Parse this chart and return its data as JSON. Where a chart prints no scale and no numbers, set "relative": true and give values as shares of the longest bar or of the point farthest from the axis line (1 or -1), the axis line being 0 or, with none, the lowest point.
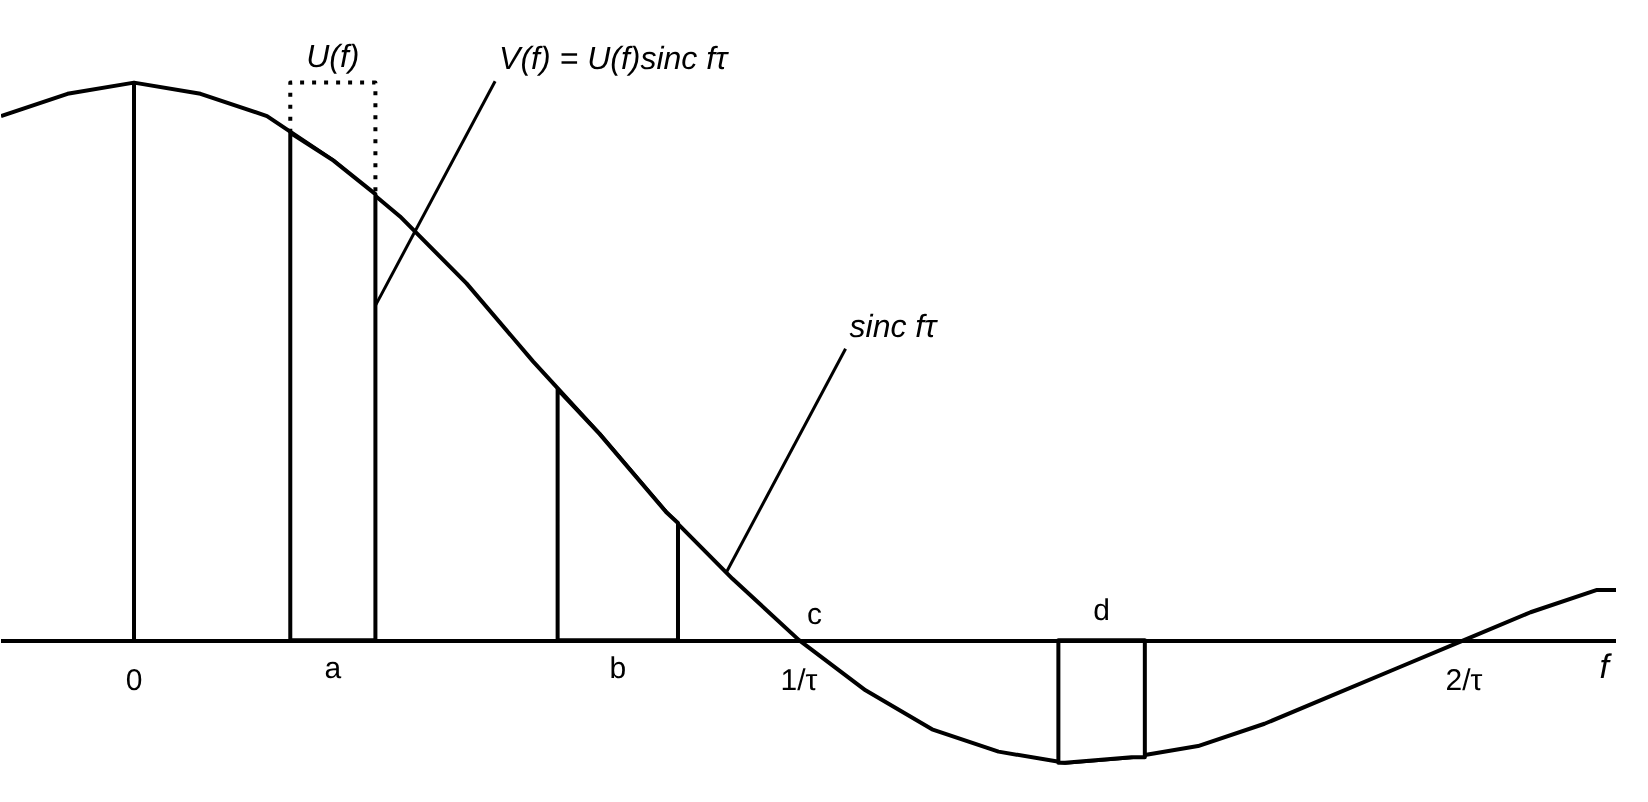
{
  "chart_data": {
    "type": "line",
    "relative": true,
    "xlabel": "f",
    "x": [
      -0.2,
      -0.1,
      0,
      0.1,
      0.2,
      0.3,
      0.4,
      0.5,
      0.6,
      0.7,
      0.8,
      0.9,
      1.0,
      1.1,
      1.2,
      1.3,
      1.4,
      1.5,
      1.6,
      1.7,
      1.8,
      1.9,
      2.0,
      2.1,
      2.2,
      2.23
    ],
    "series": [
      {
        "color": "#000000",
        "values": [
          0.94,
          0.98,
          1,
          0.98,
          0.94,
          0.86,
          0.76,
          0.64,
          0.5,
          0.37,
          0.23,
          0.11,
          0,
          -0.09,
          -0.16,
          -0.2,
          -0.22,
          -0.21,
          -0.19,
          -0.15,
          -0.1,
          -0.05,
          0,
          0.05,
          0.09,
          0.09
        ]
      },
      {
        "type": "area",
        "name": "a",
        "color": "#ffffff",
        "x": [
          0.235,
          0.3,
          0.363
        ],
        "values": [
          0.91,
          0.86,
          0.8
        ]
      },
      {
        "type": "area",
        "name": "b",
        "color": "#ffffff",
        "x": [
          0.637,
          0.7,
          0.8,
          0.818
        ],
        "values": [
          0.45,
          0.37,
          0.23,
          0.21
        ]
      },
      {
        "type": "area",
        "name": "d",
        "color": "#ffffff",
        "x": [
          1.39,
          1.4,
          1.5,
          1.52
        ],
        "values": [
          -0.22,
          -0.22,
          -0.21,
          -0.21
        ]
      },
      {
        "type": "line",
        "name": "U(f)",
        "color": "#000000",
        "line_style": "dotted",
        "x": [
          0.235,
          0.235,
          0.363,
          0.363
        ],
        "values": [
          0.91,
          1,
          1,
          0.8
        ]
      }
    ],
    "xlim": [
      -0.2,
      2.23
    ],
    "xticks": [
      0,
      {
        "value": 1,
        "label": "1/τ"
      },
      {
        "value": 2,
        "label": "2/τ"
      }
    ],
    "grid": false,
    "marker": "none",
    "line_style": "solid",
    "ref_lines": [
      {
        "axis": "x",
        "value": 0,
        "color": "#000000"
      }
    ],
    "annotations": [
      {
        "text": "V(f) = U(f)sinc fτ",
        "x": 0.363,
        "y": 0.6
      },
      {
        "text": "sinc fτ",
        "x": 0.89,
        "y": 0.12
      },
      {
        "text": "c",
        "x": 1,
        "y": 0
      }
    ]
  }
}
